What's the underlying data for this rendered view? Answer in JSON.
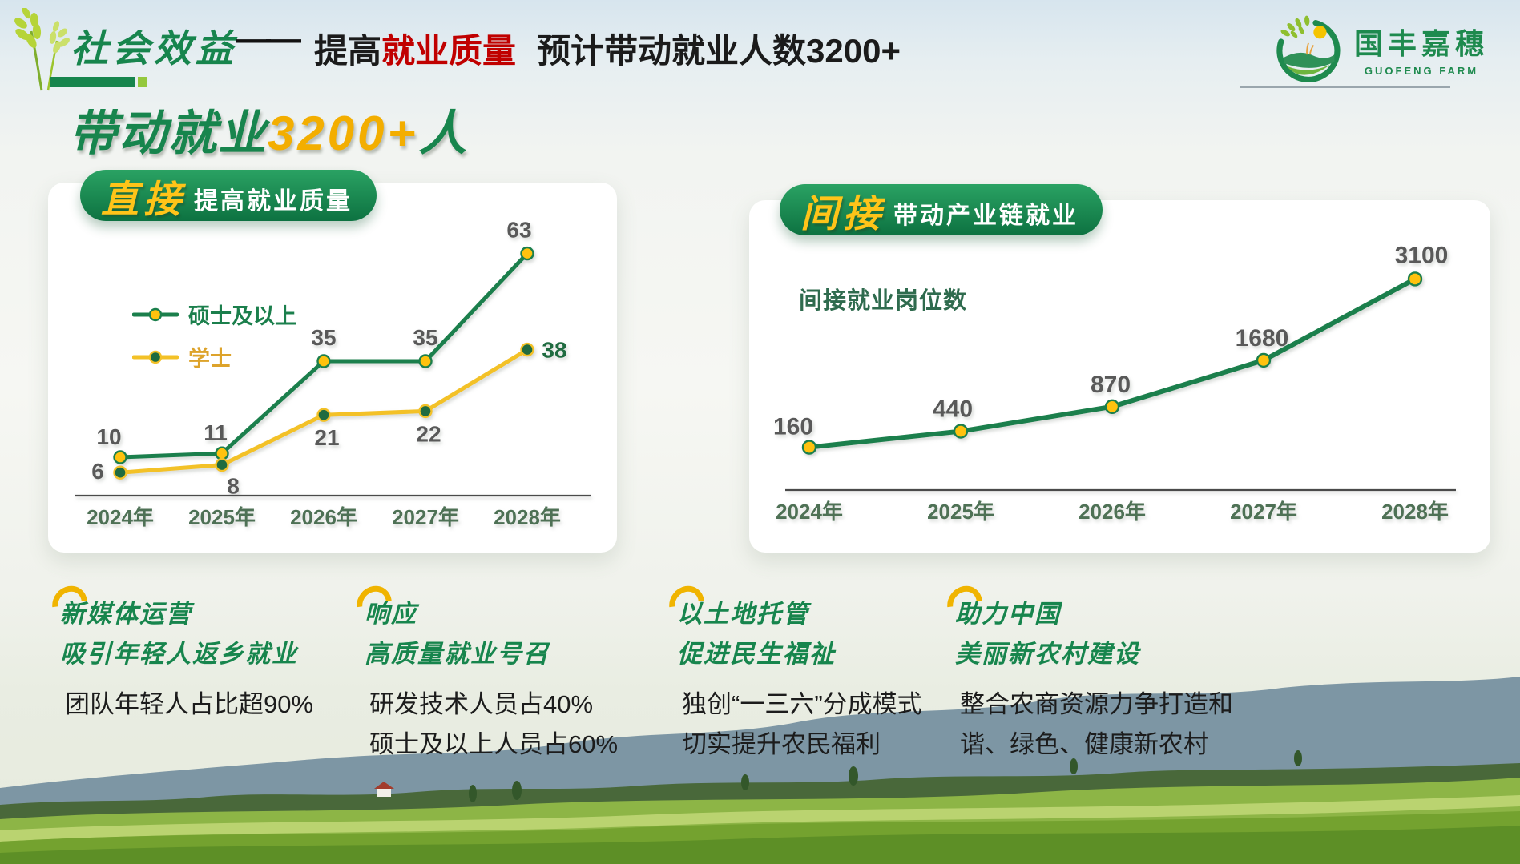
{
  "header": {
    "slide_title": "社会效益",
    "dash": "——",
    "subtitle": {
      "plain": "提高",
      "em": "就业质量",
      "rest": "预计带动就业人数3200+"
    },
    "logo": {
      "name": "国丰嘉穗",
      "subname": "GUOFENG FARM"
    }
  },
  "main_title": {
    "prefix": "带动就业",
    "number": "3200+",
    "suffix": "人"
  },
  "chart_data": [
    {
      "type": "line",
      "badge": {
        "em": "直接",
        "rest": "提高就业质量"
      },
      "categories": [
        "2024年",
        "2025年",
        "2026年",
        "2027年",
        "2028年"
      ],
      "series": [
        {
          "name": "硕士及以上",
          "values": [
            10,
            11,
            35,
            35,
            63
          ],
          "line_color": "#1b7f4c",
          "marker_fill": "#ffc20e",
          "marker_stroke": "#1b7f4c",
          "label_color": "#595959"
        },
        {
          "name": "学士",
          "values": [
            6,
            8,
            21,
            22,
            38
          ],
          "line_color": "#f3c127",
          "marker_fill": "#1f6b40",
          "marker_stroke": "#f3c127",
          "label_color": "#595959",
          "last_label_color": "#1f6b40"
        }
      ],
      "legend_position": "top-left",
      "ylim": [
        0,
        70
      ],
      "grid": false,
      "xlabel": "",
      "ylabel": ""
    },
    {
      "type": "line",
      "badge": {
        "em": "间接",
        "rest": "带动产业链就业"
      },
      "series_label": "间接就业岗位数",
      "categories": [
        "2024年",
        "2025年",
        "2026年",
        "2027年",
        "2028年"
      ],
      "series": [
        {
          "name": "间接就业岗位数",
          "values": [
            160,
            440,
            870,
            1680,
            3100
          ],
          "line_color": "#1b7f4c",
          "marker_fill": "#ffc20e",
          "marker_stroke": "#1b7f4c",
          "label_color": "#595959"
        }
      ],
      "ylim": [
        0,
        3400
      ],
      "grid": false,
      "xlabel": "",
      "ylabel": ""
    }
  ],
  "notes": [
    {
      "heading": [
        "新媒体运营",
        "吸引年轻人返乡就业"
      ],
      "body": [
        "团队年轻人占比超90%"
      ]
    },
    {
      "heading": [
        "响应",
        "高质量就业号召"
      ],
      "body": [
        "研发技术人员占40%",
        "硕士及以上人员占60%"
      ]
    },
    {
      "heading": [
        "以土地托管",
        "促进民生福祉"
      ],
      "body": [
        "独创“一三六”分成模式",
        "切实提升农民福利"
      ]
    },
    {
      "heading": [
        "助力中国",
        "美丽新农村建设"
      ],
      "body": [
        "整合农商资源力争打造和",
        "谐、绿色、健康新农村"
      ]
    }
  ],
  "colors": {
    "brand_green": "#17854d",
    "badge_gold": "#ffc419",
    "title_gold": "#f3ae00",
    "subtitle_red": "#c00000",
    "value_label_gray": "#595959",
    "axis_year_green": "#4e7155"
  }
}
